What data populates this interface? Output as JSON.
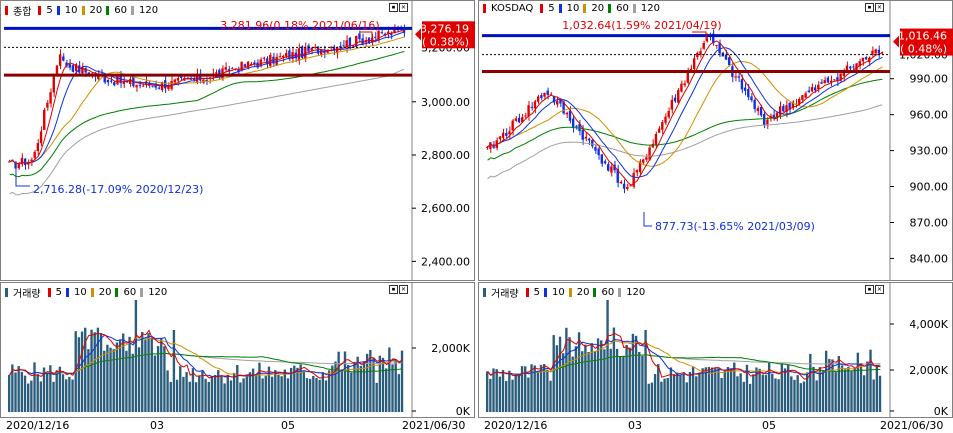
{
  "colors": {
    "ma5": "#e00000",
    "ma10": "#1030e0",
    "ma20": "#d09000",
    "ma60": "#008000",
    "ma120": "#a0a0a0",
    "up": "#e00000",
    "down": "#1030e0",
    "volume": "#2a5c7c",
    "blue_line": "#0010c0",
    "red_line": "#8b0000",
    "current_box": "#e00000"
  },
  "icons": {
    "minimize": "minimize-icon",
    "close": "close-icon",
    "current_price_marker": "triangle-left-icon"
  },
  "kospi": {
    "legend": {
      "title": "종합",
      "ma_labels": [
        "5",
        "10",
        "20",
        "60",
        "120"
      ]
    },
    "current": {
      "price": "3,276.19",
      "change": "( 0.38%)"
    },
    "high_annotation": "3,281.96(0.18% 2021/06/16)",
    "low_annotation": "2,716.28(-17.09% 2020/12/23)",
    "y_ticks": [
      "3,000.00",
      "2,800.00",
      "2,600.00",
      "2,400.00"
    ],
    "y_tick_values": [
      3000,
      2800,
      2600,
      2400
    ],
    "y_range": [
      2330,
      3330
    ],
    "upper_line": 3276.19,
    "lower_line": 3100,
    "top_partial_tick": "3,200.00"
  },
  "kosdaq": {
    "legend": {
      "title": "KOSDAQ",
      "ma_labels": [
        "5",
        "10",
        "20",
        "60",
        "120"
      ]
    },
    "current": {
      "price": "1,016.46",
      "change": "( 0.48%)"
    },
    "high_annotation": "1,032.64(1.59% 2021/04/19)",
    "low_annotation": "877.73(-13.65% 2021/03/09)",
    "y_ticks": [
      "990.00",
      "960.00",
      "930.00",
      "900.00",
      "870.00",
      "840.00"
    ],
    "y_tick_values": [
      990,
      960,
      930,
      900,
      870,
      840
    ],
    "y_range": [
      822,
      1044
    ],
    "upper_line": 1026,
    "lower_line": 996,
    "top_partial_tick": "1,020.00"
  },
  "volume_left": {
    "legend": {
      "title": "거래량",
      "ma_labels": [
        "5",
        "10",
        "20",
        "60",
        "120"
      ]
    },
    "y_ticks": [
      "2,000K",
      "0K"
    ]
  },
  "volume_right": {
    "legend": {
      "title": "거래량",
      "ma_labels": [
        "5",
        "10",
        "20",
        "60",
        "120"
      ]
    },
    "y_ticks": [
      "4,000K",
      "2,000K",
      "0K"
    ]
  },
  "dates": {
    "start": "2020/12/16",
    "mar": "03",
    "may": "05",
    "end": "2021/06/30"
  }
}
